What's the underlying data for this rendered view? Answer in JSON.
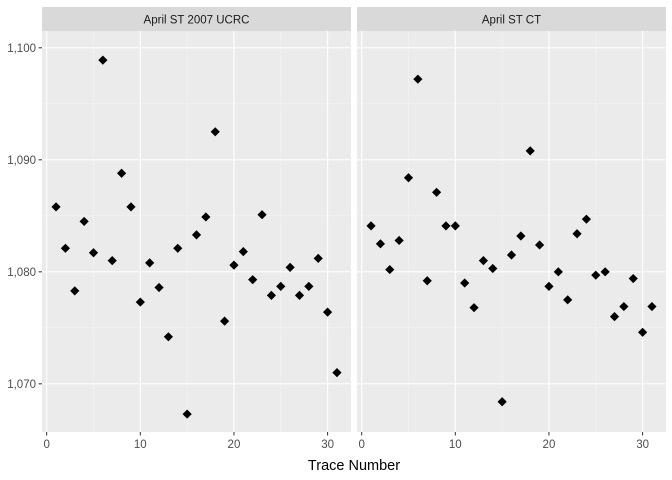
{
  "chart_data": {
    "type": "scatter",
    "xlabel": "Trace Number",
    "ylabel": "",
    "xlim": [
      -0.5,
      32.5
    ],
    "ylim": [
      1065.7,
      1101.5
    ],
    "x_ticks": [
      0,
      10,
      20,
      30
    ],
    "x_tick_labels": [
      "0",
      "10",
      "20",
      "30"
    ],
    "y_ticks": [
      1070,
      1080,
      1090,
      1100
    ],
    "y_tick_labels": [
      "1,070",
      "1,080",
      "1,090",
      "1,100"
    ],
    "grid": true,
    "marker": "diamond",
    "panels": [
      {
        "title": "April ST 2007 UCRC",
        "x": [
          1,
          2,
          3,
          4,
          5,
          6,
          7,
          8,
          9,
          10,
          11,
          12,
          13,
          14,
          15,
          16,
          17,
          18,
          19,
          20,
          21,
          22,
          23,
          24,
          25,
          26,
          27,
          28,
          29,
          30,
          31
        ],
        "y": [
          1085.8,
          1082.1,
          1078.3,
          1084.5,
          1081.7,
          1098.9,
          1081.0,
          1088.8,
          1085.8,
          1077.3,
          1080.8,
          1078.6,
          1074.2,
          1082.1,
          1067.3,
          1083.3,
          1084.9,
          1092.5,
          1075.6,
          1080.6,
          1081.8,
          1079.3,
          1085.1,
          1077.9,
          1078.7,
          1080.4,
          1077.9,
          1078.7,
          1081.2,
          1076.4,
          1071.0
        ]
      },
      {
        "title": "April ST CT",
        "x": [
          1,
          2,
          3,
          4,
          5,
          6,
          7,
          8,
          9,
          10,
          11,
          12,
          13,
          14,
          15,
          16,
          17,
          18,
          19,
          20,
          21,
          22,
          23,
          24,
          25,
          26,
          27,
          28,
          29,
          30,
          31
        ],
        "y": [
          1084.1,
          1082.5,
          1080.2,
          1082.8,
          1088.4,
          1097.2,
          1079.2,
          1087.1,
          1084.1,
          1084.1,
          1079.0,
          1076.8,
          1081.0,
          1080.3,
          1068.4,
          1081.5,
          1083.2,
          1090.8,
          1082.4,
          1078.7,
          1080.0,
          1077.5,
          1083.4,
          1084.7,
          1079.7,
          1080.0,
          1076.0,
          1076.9,
          1079.4,
          1074.6,
          1076.9
        ]
      }
    ]
  }
}
